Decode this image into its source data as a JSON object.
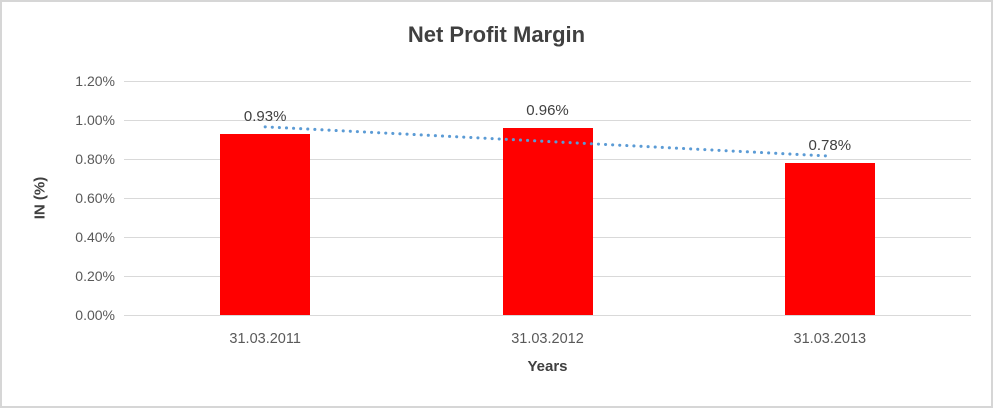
{
  "chart": {
    "title": "Net Profit Margin",
    "ylabel": "IN (%)",
    "xlabel": "Years"
  },
  "chart_data": {
    "type": "bar",
    "title": "Net Profit Margin",
    "xlabel": "Years",
    "ylabel": "IN (%)",
    "categories": [
      "31.03.2011",
      "31.03.2012",
      "31.03.2013"
    ],
    "values": [
      0.93,
      0.96,
      0.78
    ],
    "data_labels": [
      "0.93%",
      "0.96%",
      "0.78%"
    ],
    "unit": "%",
    "ylim": [
      0,
      1.2
    ],
    "ytick_step": 0.2,
    "ytick_labels": [
      "0.00%",
      "0.20%",
      "0.40%",
      "0.60%",
      "0.80%",
      "1.00%",
      "1.20%"
    ],
    "grid": true,
    "legend": "none",
    "bar_color": "#ff0000",
    "trendline": {
      "type": "linear",
      "style": "dotted",
      "color": "#5b9bd5",
      "start_value": 0.965,
      "end_value": 0.815
    }
  }
}
